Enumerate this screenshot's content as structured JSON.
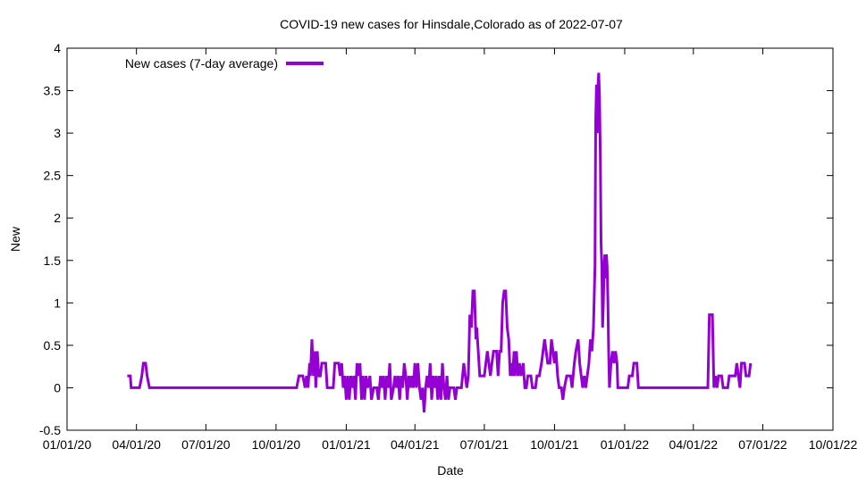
{
  "chart_data": {
    "type": "line",
    "title": "COVID-19 new cases for Hinsdale,Colorado as of 2022-07-07",
    "xlabel": "Date",
    "ylabel": "New",
    "x_range": [
      "2020-01-01",
      "2022-10-01"
    ],
    "ylim": [
      -0.5,
      4
    ],
    "y_ticks": [
      -0.5,
      0,
      0.5,
      1,
      1.5,
      2,
      2.5,
      3,
      3.5,
      4
    ],
    "y_tick_labels": [
      "-0.5",
      "0",
      "0.5",
      "1",
      "1.5",
      "2",
      "2.5",
      "3",
      "3.5",
      "4"
    ],
    "x_ticks": [
      "2020-01-01",
      "2020-04-01",
      "2020-07-01",
      "2020-10-01",
      "2021-01-01",
      "2021-04-01",
      "2021-07-01",
      "2021-10-01",
      "2022-01-01",
      "2022-04-01",
      "2022-07-01",
      "2022-10-01"
    ],
    "x_tick_labels": [
      "01/01/20",
      "04/01/20",
      "07/01/20",
      "10/01/20",
      "01/01/21",
      "04/01/21",
      "07/01/21",
      "10/01/21",
      "01/01/22",
      "04/01/22",
      "07/01/22",
      "10/01/22"
    ],
    "grid": false,
    "legend_position": "top-left",
    "series": [
      {
        "name": "New cases (7-day average)",
        "color": "#9400d3",
        "points": [
          [
            "2020-03-20",
            0.14
          ],
          [
            "2020-03-24",
            0.14
          ],
          [
            "2020-03-25",
            0
          ],
          [
            "2020-04-05",
            0
          ],
          [
            "2020-04-08",
            0.14
          ],
          [
            "2020-04-10",
            0.29
          ],
          [
            "2020-04-13",
            0.29
          ],
          [
            "2020-04-15",
            0.14
          ],
          [
            "2020-04-18",
            0
          ],
          [
            "2020-10-28",
            0
          ],
          [
            "2020-10-31",
            0.14
          ],
          [
            "2020-11-05",
            0.14
          ],
          [
            "2020-11-08",
            0
          ],
          [
            "2020-11-10",
            0.14
          ],
          [
            "2020-11-12",
            0
          ],
          [
            "2020-11-14",
            0.29
          ],
          [
            "2020-11-15",
            0.14
          ],
          [
            "2020-11-17",
            0.57
          ],
          [
            "2020-11-19",
            0.14
          ],
          [
            "2020-11-21",
            0.43
          ],
          [
            "2020-11-22",
            0
          ],
          [
            "2020-11-24",
            0.43
          ],
          [
            "2020-11-26",
            0.14
          ],
          [
            "2020-11-28",
            0.14
          ],
          [
            "2020-11-30",
            0.29
          ],
          [
            "2020-12-05",
            0.29
          ],
          [
            "2020-12-07",
            0
          ],
          [
            "2020-12-15",
            0
          ],
          [
            "2020-12-17",
            0.29
          ],
          [
            "2020-12-22",
            0.29
          ],
          [
            "2020-12-24",
            0.14
          ],
          [
            "2020-12-26",
            0.29
          ],
          [
            "2020-12-28",
            0
          ],
          [
            "2020-12-30",
            0.14
          ],
          [
            "2021-01-01",
            -0.14
          ],
          [
            "2021-01-03",
            0.14
          ],
          [
            "2021-01-05",
            -0.14
          ],
          [
            "2021-01-07",
            0.14
          ],
          [
            "2021-01-09",
            0
          ],
          [
            "2021-01-11",
            0.14
          ],
          [
            "2021-01-13",
            -0.14
          ],
          [
            "2021-01-15",
            0.29
          ],
          [
            "2021-01-17",
            0.14
          ],
          [
            "2021-01-19",
            0.29
          ],
          [
            "2021-01-21",
            -0.14
          ],
          [
            "2021-01-23",
            0.14
          ],
          [
            "2021-01-25",
            -0.14
          ],
          [
            "2021-01-27",
            0.14
          ],
          [
            "2021-01-29",
            0
          ],
          [
            "2021-02-01",
            0.14
          ],
          [
            "2021-02-03",
            -0.14
          ],
          [
            "2021-02-06",
            0
          ],
          [
            "2021-02-10",
            0
          ],
          [
            "2021-02-12",
            -0.14
          ],
          [
            "2021-02-15",
            0.14
          ],
          [
            "2021-02-17",
            0
          ],
          [
            "2021-02-19",
            0.14
          ],
          [
            "2021-02-21",
            -0.14
          ],
          [
            "2021-02-23",
            0.14
          ],
          [
            "2021-02-25",
            0
          ],
          [
            "2021-02-27",
            0.29
          ],
          [
            "2021-03-01",
            -0.14
          ],
          [
            "2021-03-04",
            0
          ],
          [
            "2021-03-06",
            0.14
          ],
          [
            "2021-03-08",
            0
          ],
          [
            "2021-03-10",
            0.14
          ],
          [
            "2021-03-12",
            -0.14
          ],
          [
            "2021-03-14",
            0.14
          ],
          [
            "2021-03-16",
            0
          ],
          [
            "2021-03-18",
            0.29
          ],
          [
            "2021-03-20",
            0.14
          ],
          [
            "2021-03-22",
            -0.14
          ],
          [
            "2021-03-24",
            0.14
          ],
          [
            "2021-03-26",
            0
          ],
          [
            "2021-03-28",
            0.14
          ],
          [
            "2021-03-30",
            0
          ],
          [
            "2021-04-01",
            0.29
          ],
          [
            "2021-04-03",
            0
          ],
          [
            "2021-04-05",
            0.29
          ],
          [
            "2021-04-07",
            0
          ],
          [
            "2021-04-09",
            -0.14
          ],
          [
            "2021-04-11",
            0
          ],
          [
            "2021-04-13",
            -0.29
          ],
          [
            "2021-04-15",
            0
          ],
          [
            "2021-04-17",
            0.14
          ],
          [
            "2021-04-19",
            0
          ],
          [
            "2021-04-21",
            0.29
          ],
          [
            "2021-04-23",
            -0.14
          ],
          [
            "2021-04-25",
            0.14
          ],
          [
            "2021-04-27",
            0
          ],
          [
            "2021-04-29",
            0.14
          ],
          [
            "2021-05-01",
            -0.14
          ],
          [
            "2021-05-03",
            0.14
          ],
          [
            "2021-05-05",
            -0.14
          ],
          [
            "2021-05-07",
            0.29
          ],
          [
            "2021-05-09",
            0
          ],
          [
            "2021-05-11",
            -0.14
          ],
          [
            "2021-05-13",
            0.14
          ],
          [
            "2021-05-15",
            -0.14
          ],
          [
            "2021-05-17",
            0
          ],
          [
            "2021-05-22",
            0
          ],
          [
            "2021-05-24",
            -0.14
          ],
          [
            "2021-05-26",
            0
          ],
          [
            "2021-06-01",
            0
          ],
          [
            "2021-06-04",
            0.29
          ],
          [
            "2021-06-06",
            0.14
          ],
          [
            "2021-06-08",
            0
          ],
          [
            "2021-06-10",
            0.14
          ],
          [
            "2021-06-12",
            0.86
          ],
          [
            "2021-06-14",
            0.71
          ],
          [
            "2021-06-16",
            1.14
          ],
          [
            "2021-06-18",
            1.14
          ],
          [
            "2021-06-20",
            0.57
          ],
          [
            "2021-06-21",
            0.71
          ],
          [
            "2021-06-23",
            0.43
          ],
          [
            "2021-06-25",
            0.14
          ],
          [
            "2021-07-01",
            0.14
          ],
          [
            "2021-07-03",
            0.29
          ],
          [
            "2021-07-05",
            0.43
          ],
          [
            "2021-07-07",
            0.29
          ],
          [
            "2021-07-09",
            0.14
          ],
          [
            "2021-07-11",
            0.29
          ],
          [
            "2021-07-13",
            0.43
          ],
          [
            "2021-07-17",
            0.43
          ],
          [
            "2021-07-19",
            0.14
          ],
          [
            "2021-07-21",
            0.43
          ],
          [
            "2021-07-23",
            0.43
          ],
          [
            "2021-07-25",
            1.0
          ],
          [
            "2021-07-27",
            1.14
          ],
          [
            "2021-07-29",
            1.14
          ],
          [
            "2021-07-31",
            0.71
          ],
          [
            "2021-08-02",
            0.57
          ],
          [
            "2021-08-04",
            0.14
          ],
          [
            "2021-08-06",
            0.29
          ],
          [
            "2021-08-07",
            0.14
          ],
          [
            "2021-08-09",
            0.43
          ],
          [
            "2021-08-10",
            0.14
          ],
          [
            "2021-08-12",
            0.43
          ],
          [
            "2021-08-14",
            0.14
          ],
          [
            "2021-08-16",
            0.29
          ],
          [
            "2021-08-18",
            0.14
          ],
          [
            "2021-08-21",
            0.29
          ],
          [
            "2021-08-23",
            0
          ],
          [
            "2021-08-25",
            0
          ],
          [
            "2021-08-27",
            0.14
          ],
          [
            "2021-08-31",
            0.14
          ],
          [
            "2021-09-02",
            0
          ],
          [
            "2021-09-06",
            0
          ],
          [
            "2021-09-08",
            0.14
          ],
          [
            "2021-09-11",
            0.14
          ],
          [
            "2021-09-14",
            0.29
          ],
          [
            "2021-09-16",
            0.43
          ],
          [
            "2021-09-18",
            0.57
          ],
          [
            "2021-09-20",
            0.43
          ],
          [
            "2021-09-22",
            0.29
          ],
          [
            "2021-09-25",
            0.29
          ],
          [
            "2021-09-27",
            0.57
          ],
          [
            "2021-09-29",
            0.43
          ],
          [
            "2021-10-01",
            0.29
          ],
          [
            "2021-10-03",
            0.43
          ],
          [
            "2021-10-05",
            0.14
          ],
          [
            "2021-10-07",
            0
          ],
          [
            "2021-10-10",
            0
          ],
          [
            "2021-10-12",
            -0.14
          ],
          [
            "2021-10-14",
            0
          ],
          [
            "2021-10-17",
            0.14
          ],
          [
            "2021-10-22",
            0.14
          ],
          [
            "2021-10-24",
            0
          ],
          [
            "2021-10-27",
            0.29
          ],
          [
            "2021-10-29",
            0.43
          ],
          [
            "2021-11-01",
            0.57
          ],
          [
            "2021-11-03",
            0.29
          ],
          [
            "2021-11-05",
            0.14
          ],
          [
            "2021-11-07",
            0
          ],
          [
            "2021-11-09",
            0.14
          ],
          [
            "2021-11-11",
            0
          ],
          [
            "2021-11-13",
            0.14
          ],
          [
            "2021-11-15",
            0.29
          ],
          [
            "2021-11-17",
            0.57
          ],
          [
            "2021-11-19",
            0.43
          ],
          [
            "2021-11-21",
            0.71
          ],
          [
            "2021-11-23",
            1.43
          ],
          [
            "2021-11-24",
            3.14
          ],
          [
            "2021-11-25",
            3.57
          ],
          [
            "2021-11-26",
            3.0
          ],
          [
            "2021-11-27",
            3.57
          ],
          [
            "2021-11-28",
            3.71
          ],
          [
            "2021-11-29",
            3.43
          ],
          [
            "2021-11-30",
            2.71
          ],
          [
            "2021-12-01",
            1.71
          ],
          [
            "2021-12-02",
            1.43
          ],
          [
            "2021-12-03",
            0.71
          ],
          [
            "2021-12-04",
            1.0
          ],
          [
            "2021-12-05",
            1.43
          ],
          [
            "2021-12-06",
            1.57
          ],
          [
            "2021-12-07",
            1.29
          ],
          [
            "2021-12-08",
            1.57
          ],
          [
            "2021-12-09",
            1.43
          ],
          [
            "2021-12-10",
            1.0
          ],
          [
            "2021-12-11",
            0.43
          ],
          [
            "2021-12-12",
            0
          ],
          [
            "2021-12-14",
            0.29
          ],
          [
            "2021-12-16",
            0.43
          ],
          [
            "2021-12-18",
            0.29
          ],
          [
            "2021-12-20",
            0.43
          ],
          [
            "2021-12-22",
            0.29
          ],
          [
            "2021-12-23",
            0
          ],
          [
            "2022-01-05",
            0
          ],
          [
            "2022-01-07",
            0.14
          ],
          [
            "2022-01-11",
            0.14
          ],
          [
            "2022-01-13",
            0.29
          ],
          [
            "2022-01-17",
            0.29
          ],
          [
            "2022-01-19",
            0
          ],
          [
            "2022-04-20",
            0
          ],
          [
            "2022-04-22",
            0.86
          ],
          [
            "2022-04-26",
            0.86
          ],
          [
            "2022-04-28",
            0
          ],
          [
            "2022-04-30",
            0.14
          ],
          [
            "2022-05-02",
            0
          ],
          [
            "2022-05-04",
            0.14
          ],
          [
            "2022-05-08",
            0.14
          ],
          [
            "2022-05-10",
            0
          ],
          [
            "2022-05-16",
            0
          ],
          [
            "2022-05-18",
            0.14
          ],
          [
            "2022-05-26",
            0.14
          ],
          [
            "2022-05-28",
            0.29
          ],
          [
            "2022-05-30",
            0.14
          ],
          [
            "2022-06-01",
            0
          ],
          [
            "2022-06-03",
            0.29
          ],
          [
            "2022-06-07",
            0.29
          ],
          [
            "2022-06-09",
            0.14
          ],
          [
            "2022-06-13",
            0.14
          ],
          [
            "2022-06-15",
            0.29
          ]
        ]
      }
    ]
  }
}
